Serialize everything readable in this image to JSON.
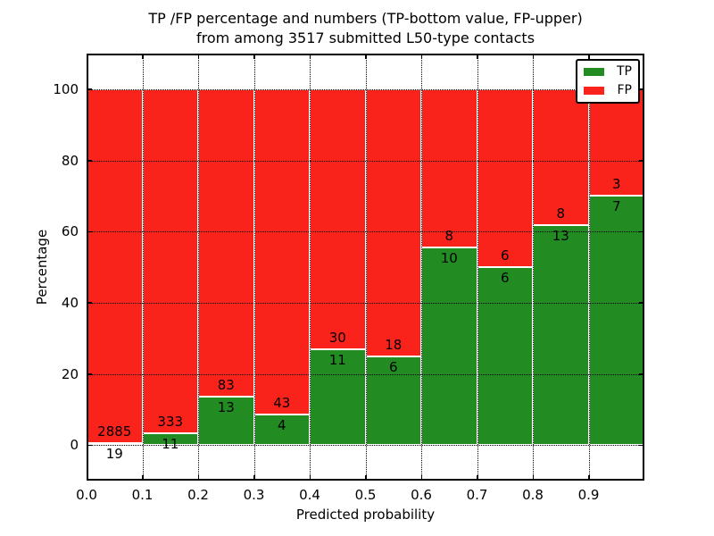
{
  "figure": {
    "title_line1": "TP /FP percentage and numbers (TP-bottom value, FP-upper)",
    "title_line2": "from among 3517 submitted L50-type contacts"
  },
  "chart_data": {
    "type": "bar",
    "stacked": true,
    "title": "TP /FP percentage and numbers (TP-bottom value, FP-upper) from among 3517 submitted L50-type contacts",
    "xlabel": "Predicted probability",
    "ylabel": "Percentage",
    "xlim": [
      0.0,
      1.0
    ],
    "ylim": [
      -10,
      110
    ],
    "x_ticks": [
      "0.0",
      "0.1",
      "0.2",
      "0.3",
      "0.4",
      "0.5",
      "0.6",
      "0.7",
      "0.8",
      "0.9"
    ],
    "y_ticks": [
      "0",
      "20",
      "40",
      "60",
      "80",
      "100"
    ],
    "grid": "dotted",
    "grid_on": true,
    "legend_position": "upper right",
    "bin_width": 0.1,
    "bin_starts": [
      0.0,
      0.1,
      0.2,
      0.3,
      0.4,
      0.5,
      0.6,
      0.7,
      0.8,
      0.9
    ],
    "series": [
      {
        "name": "TP",
        "color": "#228b22",
        "values": [
          19,
          11,
          13,
          4,
          11,
          6,
          10,
          6,
          13,
          7
        ]
      },
      {
        "name": "FP",
        "color": "#fa231c",
        "values": [
          2885,
          333,
          83,
          43,
          30,
          18,
          8,
          6,
          8,
          3
        ]
      }
    ],
    "tp_percent_by_bin": [
      0.7,
      3.2,
      13.5,
      8.5,
      26.8,
      25.0,
      55.6,
      50.0,
      61.9,
      70.0
    ],
    "total_contacts": 3517
  },
  "legend": {
    "items": [
      {
        "label": "TP",
        "color": "#228b22"
      },
      {
        "label": "FP",
        "color": "#fa231c"
      }
    ]
  },
  "colors": {
    "tp": "#228b22",
    "fp": "#fa231c",
    "grid": "#000000",
    "background": "#ffffff"
  }
}
